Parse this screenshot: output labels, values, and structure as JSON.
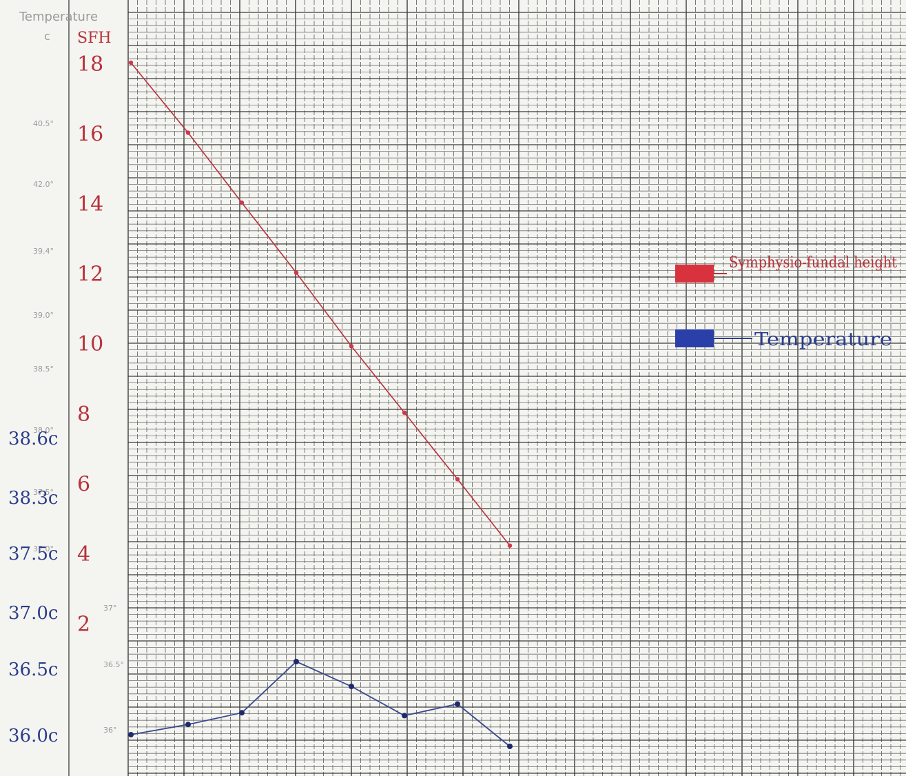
{
  "chart_data": {
    "type": "line",
    "header": {
      "printed_label": "Temperature",
      "printed_unit": "c",
      "sfh_label": "SFH"
    },
    "left_axis_temperature_labels": [
      "38.6c",
      "38.3c",
      "37.5c",
      "37.0c",
      "36.5c",
      "36.0c"
    ],
    "sfh_axis": {
      "ticks": [
        18,
        16,
        14,
        12,
        10,
        8,
        6,
        4,
        2
      ],
      "tick_labels": [
        "18",
        "16",
        "14",
        "12",
        "10",
        "8",
        "6",
        "4",
        "2"
      ],
      "ylim": [
        0,
        18
      ]
    },
    "temp_axis": {
      "ylim": [
        35.97,
        36.75
      ]
    },
    "printed_scale": [
      "40.5°",
      "42.0°",
      "39.4°",
      "39.0°",
      "38.5°",
      "38.0°",
      "37.5°",
      "37.0°",
      "37°",
      "36.5°",
      "36°"
    ],
    "x": [
      1,
      2,
      3,
      4,
      5,
      6,
      7,
      8
    ],
    "series": [
      {
        "name": "Symphysio-fundal height",
        "color": "#b8323a",
        "marker_color": "#d03848",
        "axis": "sfh",
        "values": [
          18,
          16,
          14,
          12,
          9.9,
          8.0,
          6.1,
          4.2
        ]
      },
      {
        "name": "Temperature",
        "color": "#3a4a8c",
        "marker_color": "#1e2a6e",
        "axis": "temp",
        "values": [
          36.0,
          36.07,
          36.15,
          36.5,
          36.33,
          36.13,
          36.21,
          35.92
        ]
      }
    ],
    "legend": {
      "placement": "right",
      "items": [
        {
          "label": "Symphysio-fundal height",
          "swatch": "#d8323e"
        },
        {
          "label": "Temperature",
          "swatch": "#2a3fa8"
        }
      ]
    },
    "grid": true
  }
}
